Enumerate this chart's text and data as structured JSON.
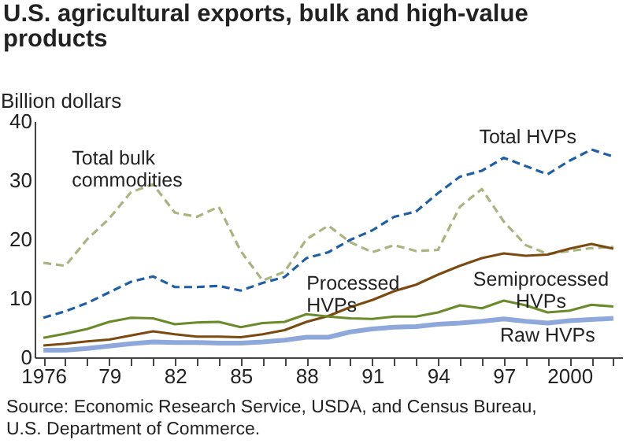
{
  "chart_data": {
    "type": "line",
    "title": "U.S. agricultural exports, bulk and high-value products",
    "ylabel": "Billion dollars",
    "x": [
      1976,
      1977,
      1978,
      1979,
      1980,
      1981,
      1982,
      1983,
      1984,
      1985,
      1986,
      1987,
      1988,
      1989,
      1990,
      1991,
      1992,
      1993,
      1994,
      1995,
      1996,
      1997,
      1998,
      1999,
      2000,
      2001,
      2002
    ],
    "series": [
      {
        "name": "Total bulk commodities",
        "color": "#a9b47f",
        "line_style": "dashed",
        "values": [
          16,
          15.5,
          20,
          23.5,
          28,
          29.3,
          24.5,
          23.8,
          25.5,
          18,
          13,
          14.5,
          20,
          22.3,
          19.5,
          17.8,
          19,
          18,
          18.2,
          25.5,
          28.5,
          23,
          19,
          17.5,
          18,
          18.5,
          18.7
        ]
      },
      {
        "name": "Total HVPs",
        "color": "#1f5fa8",
        "line_style": "dashed",
        "values": [
          6.7,
          7.8,
          9.2,
          11,
          12.8,
          13.7,
          11.9,
          11.9,
          12.1,
          11.3,
          12.6,
          13.6,
          16.8,
          17.8,
          19.9,
          21.5,
          23.8,
          24.7,
          27.8,
          30.6,
          31.6,
          33.8,
          32.4,
          31,
          33.3,
          35.2,
          34
        ]
      },
      {
        "name": "Processed HVPs",
        "color": "#7a4a10",
        "line_style": "solid",
        "values": [
          2,
          2.3,
          2.7,
          3,
          3.7,
          4.4,
          3.9,
          3.5,
          3.5,
          3.4,
          3.9,
          4.6,
          6,
          7,
          8.5,
          9.7,
          11.2,
          12.3,
          14,
          15.5,
          16.8,
          17.6,
          17.2,
          17.4,
          18.4,
          19.2,
          18.4
        ]
      },
      {
        "name": "Semiprocessed HVPs",
        "color": "#6b8a2a",
        "line_style": "solid",
        "values": [
          3.3,
          4,
          4.8,
          6,
          6.7,
          6.6,
          5.6,
          5.9,
          6,
          5.1,
          5.8,
          6,
          7.3,
          6.9,
          6.6,
          6.5,
          6.9,
          6.9,
          7.6,
          8.8,
          8.3,
          9.6,
          8.8,
          7.6,
          7.9,
          8.9,
          8.6
        ]
      },
      {
        "name": "Raw HVPs",
        "color": "#8fa8dc",
        "line_style": "solid",
        "values": [
          1.2,
          1.2,
          1.5,
          1.9,
          2.3,
          2.6,
          2.5,
          2.5,
          2.4,
          2.4,
          2.6,
          2.9,
          3.4,
          3.4,
          4.3,
          4.8,
          5.1,
          5.2,
          5.6,
          5.8,
          6.1,
          6.5,
          6.1,
          5.8,
          6.2,
          6.4,
          6.6
        ]
      }
    ],
    "xlim": [
      1975.6,
      2002.4
    ],
    "xticks": [
      {
        "value": 1976,
        "label": "1976"
      },
      {
        "value": 1977,
        "label": null
      },
      {
        "value": 1978,
        "label": null
      },
      {
        "value": 1979,
        "label": "79"
      },
      {
        "value": 1980,
        "label": null
      },
      {
        "value": 1981,
        "label": null
      },
      {
        "value": 1982,
        "label": "82"
      },
      {
        "value": 1983,
        "label": null
      },
      {
        "value": 1984,
        "label": null
      },
      {
        "value": 1985,
        "label": "85"
      },
      {
        "value": 1986,
        "label": null
      },
      {
        "value": 1987,
        "label": null
      },
      {
        "value": 1988,
        "label": "88"
      },
      {
        "value": 1989,
        "label": null
      },
      {
        "value": 1990,
        "label": null
      },
      {
        "value": 1991,
        "label": "91"
      },
      {
        "value": 1992,
        "label": null
      },
      {
        "value": 1993,
        "label": null
      },
      {
        "value": 1994,
        "label": "94"
      },
      {
        "value": 1995,
        "label": null
      },
      {
        "value": 1996,
        "label": null
      },
      {
        "value": 1997,
        "label": "97"
      },
      {
        "value": 1998,
        "label": null
      },
      {
        "value": 1999,
        "label": null
      },
      {
        "value": 2000,
        "label": "2000"
      },
      {
        "value": 2001,
        "label": null
      },
      {
        "value": 2002,
        "label": null
      }
    ],
    "ylim": [
      0,
      40
    ],
    "yticks": [
      0,
      10,
      20,
      30,
      40
    ],
    "grid": false,
    "marker": "none",
    "annotations": [
      "Source:  Economic Research Service, USDA, and Census Bureau,\nU.S. Department of Commerce."
    ]
  }
}
